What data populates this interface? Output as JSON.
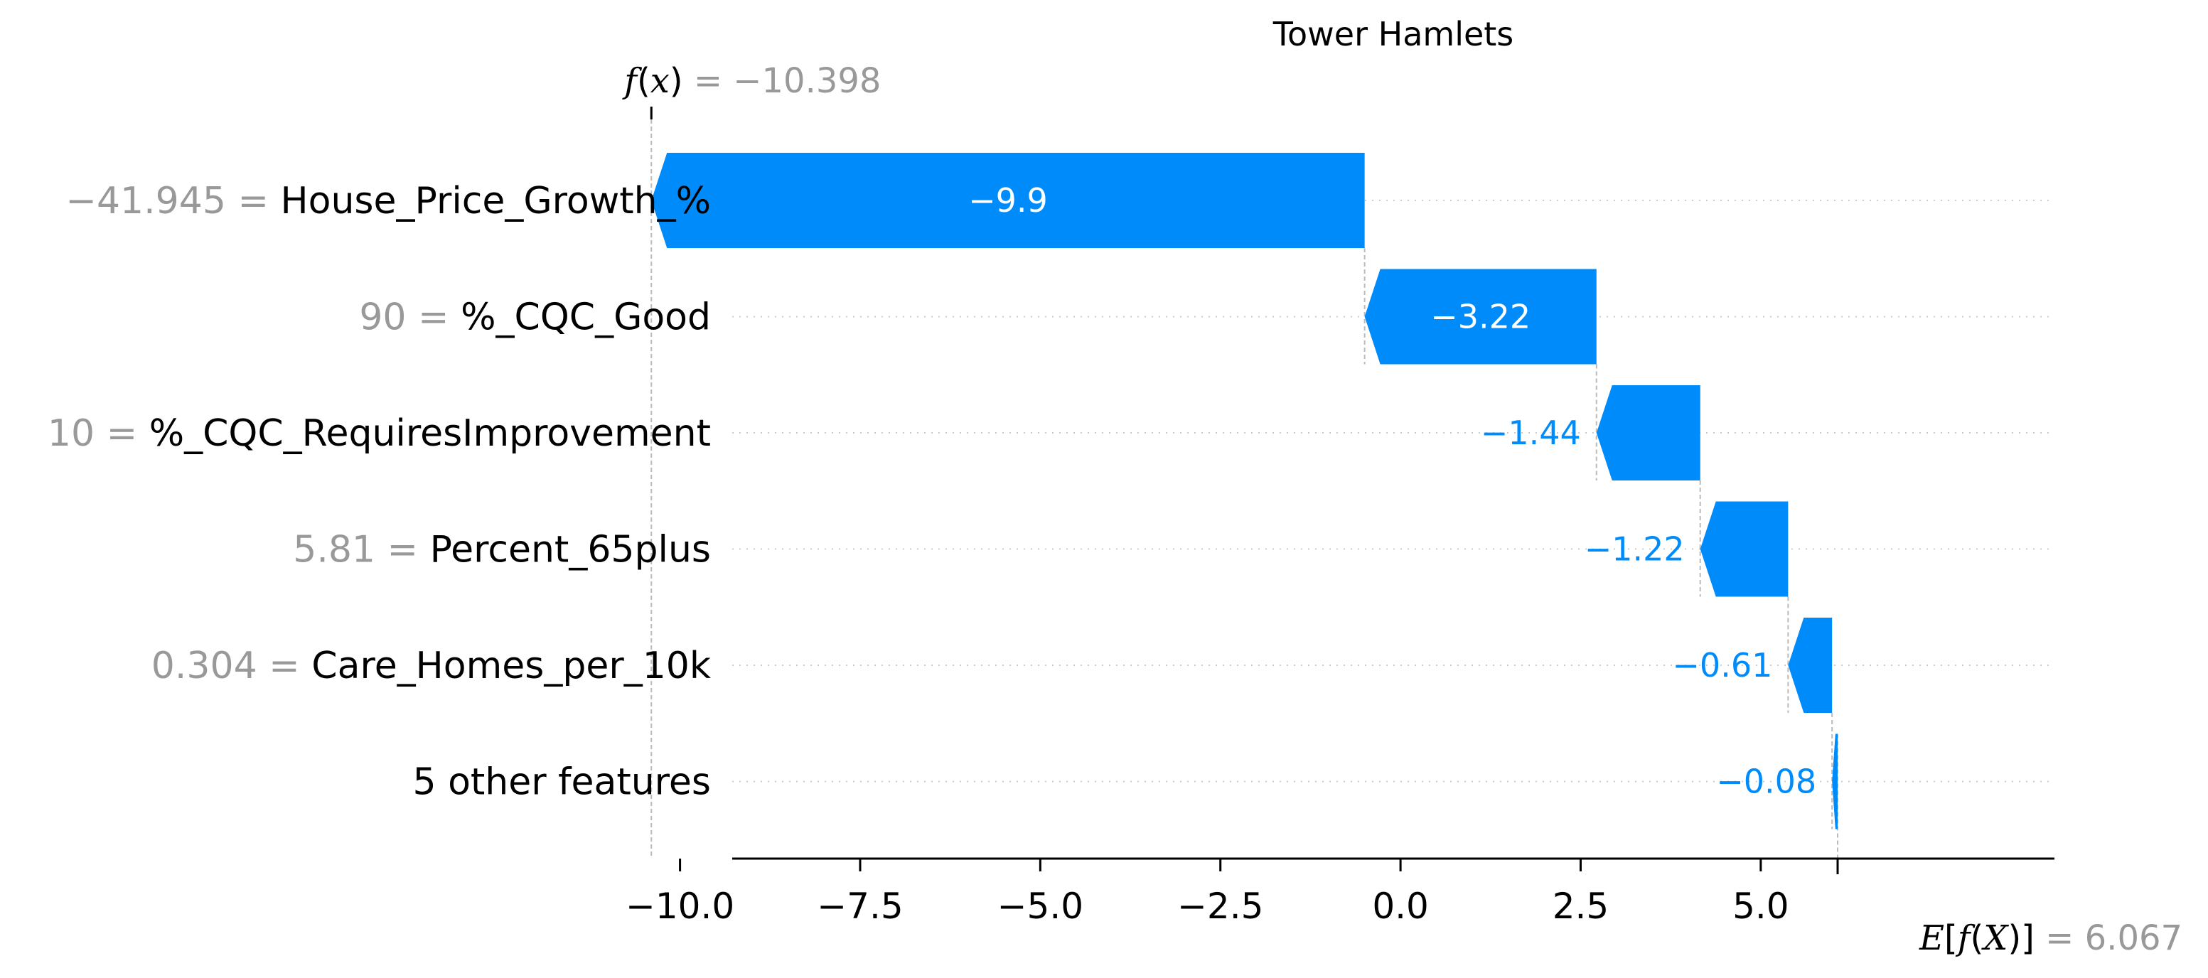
{
  "chart_data": {
    "type": "waterfall",
    "title": "Tower Hamlets",
    "fx_value": "−10.398",
    "fx": -10.398,
    "base_value_label": "6.067",
    "base_value": 6.067,
    "xlim": [
      -11.5,
      7.0
    ],
    "x_ticks": [
      {
        "value": -10.0,
        "label": "−10.0"
      },
      {
        "value": -7.5,
        "label": "−7.5"
      },
      {
        "value": -5.0,
        "label": "−5.0"
      },
      {
        "value": -2.5,
        "label": "−2.5"
      },
      {
        "value": 0.0,
        "label": "0.0"
      },
      {
        "value": 2.5,
        "label": "2.5"
      },
      {
        "value": 5.0,
        "label": "5.0"
      }
    ],
    "features": [
      {
        "name": "House_Price_Growth_%",
        "value": "−41.945",
        "contribution": -9.9,
        "contribution_label": "−9.9",
        "start": -0.498,
        "end": -10.398
      },
      {
        "name": "%_CQC_Good",
        "value": "90",
        "contribution": -3.22,
        "contribution_label": "−3.22",
        "start": 2.72,
        "end": -0.498
      },
      {
        "name": "%_CQC_RequiresImprovement",
        "value": "10",
        "contribution": -1.44,
        "contribution_label": "−1.44",
        "start": 4.16,
        "end": 2.72
      },
      {
        "name": "Percent_65plus",
        "value": "5.81",
        "contribution": -1.22,
        "contribution_label": "−1.22",
        "start": 5.38,
        "end": 4.16
      },
      {
        "name": "Care_Homes_per_10k",
        "value": "0.304",
        "contribution": -0.61,
        "contribution_label": "−0.61",
        "start": 5.99,
        "end": 5.38
      },
      {
        "name": "5 other features",
        "value": "",
        "contribution": -0.08,
        "contribution_label": "−0.08",
        "start": 6.067,
        "end": 5.99
      }
    ],
    "colors": {
      "negative": "#008bfb",
      "negative_text": "#ffffff",
      "outside_text": "#008bfb",
      "grey": "#999999"
    }
  }
}
